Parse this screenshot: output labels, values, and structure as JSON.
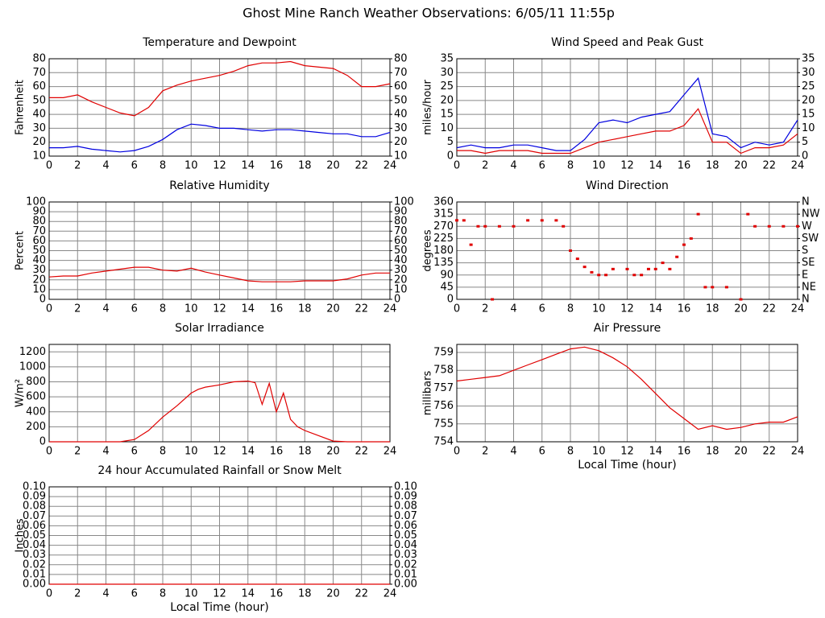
{
  "title": "Ghost Mine Ranch Weather Observations: 6/05/11 11:55p",
  "chart_data": [
    {
      "type": "line",
      "title": "Temperature and Dewpoint",
      "ylabel": "Fahrenheit",
      "x": [
        0,
        1,
        2,
        3,
        4,
        5,
        6,
        7,
        8,
        9,
        10,
        11,
        12,
        13,
        14,
        15,
        16,
        17,
        18,
        19,
        20,
        21,
        22,
        23,
        24
      ],
      "series": [
        {
          "color": "#e00000",
          "values": [
            52,
            52,
            54,
            49,
            45,
            41,
            39,
            45,
            57,
            61,
            64,
            66,
            68,
            71,
            75,
            77,
            77,
            78,
            75,
            74,
            73,
            68,
            60,
            60,
            62
          ]
        },
        {
          "color": "#0000e0",
          "values": [
            16,
            16,
            17,
            15,
            14,
            13,
            14,
            17,
            22,
            29,
            33,
            32,
            30,
            30,
            29,
            28,
            29,
            29,
            28,
            27,
            26,
            26,
            24,
            24,
            27
          ]
        }
      ],
      "xlim": [
        0,
        24
      ],
      "xticks": [
        0,
        2,
        4,
        6,
        8,
        10,
        12,
        14,
        16,
        18,
        20,
        22,
        24
      ],
      "ylim": [
        10,
        80
      ],
      "yticks": [
        10,
        20,
        30,
        40,
        50,
        60,
        70,
        80
      ],
      "y2lim": [
        10,
        80
      ],
      "y2ticks": [
        10,
        20,
        30,
        40,
        50,
        60,
        70,
        80
      ],
      "grid": true
    },
    {
      "type": "line",
      "title": "Wind Speed and Peak Gust",
      "ylabel": "miles/hour",
      "x": [
        0,
        1,
        2,
        3,
        4,
        5,
        6,
        7,
        8,
        9,
        10,
        11,
        12,
        13,
        14,
        15,
        16,
        17,
        18,
        19,
        20,
        21,
        22,
        23,
        24
      ],
      "series": [
        {
          "color": "#0000e0",
          "values": [
            3,
            4,
            3,
            3,
            4,
            4,
            3,
            2,
            2,
            6,
            12,
            13,
            12,
            14,
            15,
            16,
            22,
            28,
            8,
            7,
            3,
            5,
            4,
            5,
            13
          ]
        },
        {
          "color": "#e00000",
          "values": [
            2,
            2,
            1,
            2,
            2,
            2,
            1,
            1,
            1,
            3,
            5,
            6,
            7,
            8,
            9,
            9,
            11,
            17,
            5,
            5,
            1,
            3,
            3,
            4,
            8
          ]
        }
      ],
      "xlim": [
        0,
        24
      ],
      "xticks": [
        0,
        2,
        4,
        6,
        8,
        10,
        12,
        14,
        16,
        18,
        20,
        22,
        24
      ],
      "ylim": [
        0,
        35
      ],
      "yticks": [
        0,
        5,
        10,
        15,
        20,
        25,
        30,
        35
      ],
      "y2lim": [
        0,
        35
      ],
      "y2ticks": [
        0,
        5,
        10,
        15,
        20,
        25,
        30,
        35
      ],
      "grid": true
    },
    {
      "type": "line",
      "title": "Relative Humidity",
      "ylabel": "Percent",
      "x": [
        0,
        1,
        2,
        3,
        4,
        5,
        6,
        7,
        8,
        9,
        10,
        11,
        12,
        13,
        14,
        15,
        16,
        17,
        18,
        19,
        20,
        21,
        22,
        23,
        24
      ],
      "series": [
        {
          "color": "#e00000",
          "values": [
            23,
            24,
            24,
            27,
            29,
            31,
            33,
            33,
            30,
            29,
            32,
            28,
            25,
            22,
            19,
            18,
            18,
            18,
            19,
            19,
            19,
            21,
            25,
            27,
            27
          ]
        }
      ],
      "xlim": [
        0,
        24
      ],
      "xticks": [
        0,
        2,
        4,
        6,
        8,
        10,
        12,
        14,
        16,
        18,
        20,
        22,
        24
      ],
      "ylim": [
        0,
        100
      ],
      "yticks": [
        0,
        10,
        20,
        30,
        40,
        50,
        60,
        70,
        80,
        90,
        100
      ],
      "y2lim": [
        0,
        100
      ],
      "y2ticks": [
        0,
        10,
        20,
        30,
        40,
        50,
        60,
        70,
        80,
        90,
        100
      ],
      "grid": true
    },
    {
      "type": "scatter",
      "title": "Wind Direction",
      "ylabel": "degrees",
      "x": [
        0,
        0.5,
        1,
        1.5,
        2,
        2.5,
        3,
        4,
        5,
        6,
        7,
        7.5,
        8,
        8.5,
        9,
        9.5,
        10,
        10.5,
        11,
        12,
        12.5,
        13,
        13.5,
        14,
        14.5,
        15,
        15.5,
        16,
        16.5,
        17,
        17.5,
        18,
        19,
        20,
        20.5,
        21,
        22,
        23,
        24
      ],
      "series": [
        {
          "color": "#e00000",
          "values": [
            292,
            292,
            202,
            270,
            270,
            0,
            270,
            270,
            292,
            292,
            292,
            270,
            180,
            150,
            120,
            100,
            90,
            90,
            112,
            112,
            90,
            90,
            112,
            112,
            135,
            112,
            157,
            202,
            225,
            315,
            45,
            45,
            45,
            0,
            315,
            270,
            270,
            270,
            270
          ]
        }
      ],
      "xlim": [
        0,
        24
      ],
      "xticks": [
        0,
        2,
        4,
        6,
        8,
        10,
        12,
        14,
        16,
        18,
        20,
        22,
        24
      ],
      "ylim": [
        0,
        360
      ],
      "yticks": [
        0,
        45,
        90,
        135,
        180,
        225,
        270,
        315,
        360
      ],
      "y2lim": [
        0,
        360
      ],
      "y2ticks": [
        {
          "value": 0,
          "label": "N"
        },
        {
          "value": 45,
          "label": "NE"
        },
        {
          "value": 90,
          "label": "E"
        },
        {
          "value": 135,
          "label": "SE"
        },
        {
          "value": 180,
          "label": "S"
        },
        {
          "value": 225,
          "label": "SW"
        },
        {
          "value": 270,
          "label": "W"
        },
        {
          "value": 315,
          "label": "NW"
        },
        {
          "value": 360,
          "label": "N"
        }
      ],
      "grid": true
    },
    {
      "type": "line",
      "title": "Solar Irradiance",
      "ylabel": "W/m²",
      "x": [
        0,
        1,
        2,
        3,
        4,
        5,
        6,
        7,
        8,
        9,
        10,
        10.5,
        11,
        12,
        13,
        14,
        14.5,
        15,
        15.5,
        16,
        16.5,
        17,
        17.5,
        18,
        19,
        20,
        21,
        22,
        23,
        24
      ],
      "series": [
        {
          "color": "#e00000",
          "values": [
            0,
            0,
            0,
            0,
            0,
            0,
            30,
            150,
            330,
            480,
            650,
            700,
            730,
            760,
            800,
            810,
            790,
            500,
            780,
            400,
            650,
            300,
            200,
            150,
            80,
            10,
            0,
            0,
            0,
            0
          ]
        }
      ],
      "xlim": [
        0,
        24
      ],
      "xticks": [
        0,
        2,
        4,
        6,
        8,
        10,
        12,
        14,
        16,
        18,
        20,
        22,
        24
      ],
      "ylim": [
        0,
        1300
      ],
      "yticks": [
        0,
        200,
        400,
        600,
        800,
        1000,
        1200
      ],
      "grid": true
    },
    {
      "type": "line",
      "title": "Air Pressure",
      "ylabel": "millibars",
      "xlabel": "Local Time (hour)",
      "x": [
        0,
        1,
        2,
        3,
        4,
        5,
        6,
        7,
        8,
        9,
        10,
        11,
        12,
        13,
        14,
        15,
        16,
        17,
        18,
        19,
        20,
        21,
        22,
        23,
        24
      ],
      "series": [
        {
          "color": "#e00000",
          "values": [
            757.4,
            757.5,
            757.6,
            757.7,
            758.0,
            758.3,
            758.6,
            758.9,
            759.2,
            759.3,
            759.1,
            758.7,
            758.2,
            757.5,
            756.7,
            755.9,
            755.3,
            754.7,
            754.9,
            754.7,
            754.8,
            755.0,
            755.1,
            755.1,
            755.4
          ]
        }
      ],
      "xlim": [
        0,
        24
      ],
      "xticks": [
        0,
        2,
        4,
        6,
        8,
        10,
        12,
        14,
        16,
        18,
        20,
        22,
        24
      ],
      "ylim": [
        754,
        759.45
      ],
      "yticks": [
        754,
        755,
        756,
        757,
        758,
        759
      ],
      "grid": true
    },
    {
      "type": "line",
      "title": "24 hour Accumulated Rainfall or Snow Melt",
      "ylabel": "Inches",
      "xlabel": "Local Time (hour)",
      "x": [
        0,
        1,
        2,
        3,
        4,
        5,
        6,
        7,
        8,
        9,
        10,
        11,
        12,
        13,
        14,
        15,
        16,
        17,
        18,
        19,
        20,
        21,
        22,
        23,
        24
      ],
      "series": [
        {
          "color": "#e00000",
          "values": [
            0,
            0,
            0,
            0,
            0,
            0,
            0,
            0,
            0,
            0,
            0,
            0,
            0,
            0,
            0,
            0,
            0,
            0,
            0,
            0,
            0,
            0,
            0,
            0,
            0
          ]
        }
      ],
      "xlim": [
        0,
        24
      ],
      "xticks": [
        0,
        2,
        4,
        6,
        8,
        10,
        12,
        14,
        16,
        18,
        20,
        22,
        24
      ],
      "ylim": [
        0,
        0.1
      ],
      "yticks": [
        {
          "value": 0,
          "label": "0.00"
        },
        0.01,
        0.02,
        0.03,
        0.04,
        0.05,
        0.06,
        0.07,
        0.08,
        0.09,
        {
          "value": 0.1,
          "label": "0.10"
        }
      ],
      "y2lim": [
        0,
        0.1
      ],
      "y2ticks": [
        {
          "value": 0,
          "label": "0.00"
        },
        0.01,
        0.02,
        0.03,
        0.04,
        0.05,
        0.06,
        0.07,
        0.08,
        0.09,
        {
          "value": 0.1,
          "label": "0.10"
        }
      ],
      "grid": true
    }
  ]
}
